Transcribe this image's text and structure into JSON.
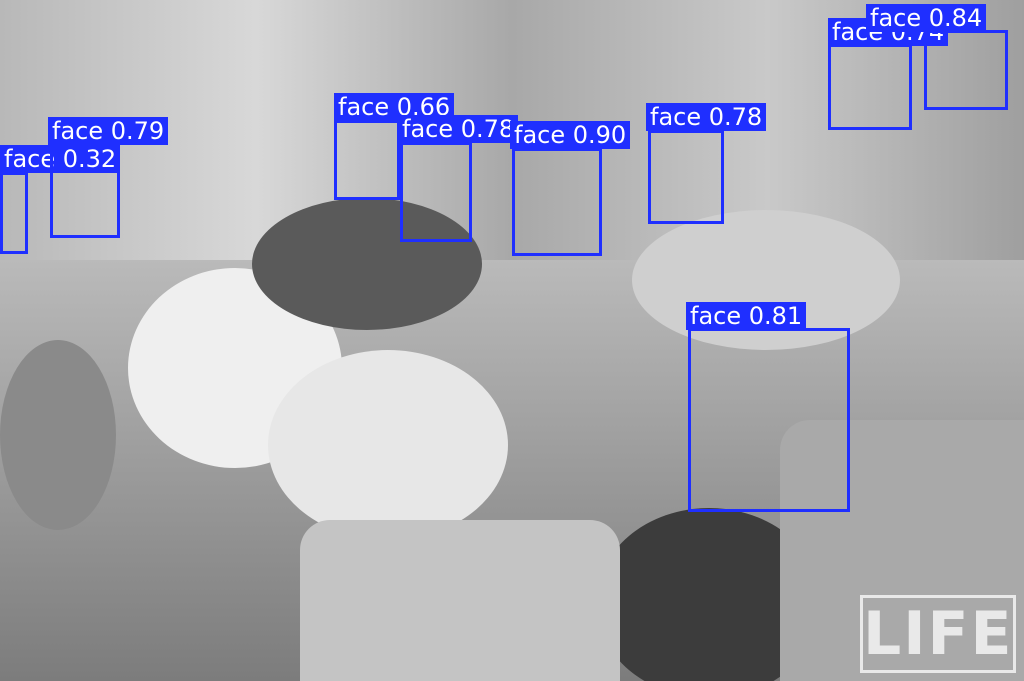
{
  "image": {
    "description_free": true
  },
  "detections": [
    {
      "label": "face 0.32"
    },
    {
      "label": "face 0.79"
    },
    {
      "label": "face 0.66"
    },
    {
      "label": "face 0.78"
    },
    {
      "label": "face 0.90"
    },
    {
      "label": "face 0.78"
    },
    {
      "label": "face 0.74"
    },
    {
      "label": "face 0.84"
    },
    {
      "label": "face 0.81"
    }
  ],
  "watermark": {
    "text": "LIFE"
  },
  "colors": {
    "box": "#1f2fff",
    "label_text": "#ffffff"
  }
}
